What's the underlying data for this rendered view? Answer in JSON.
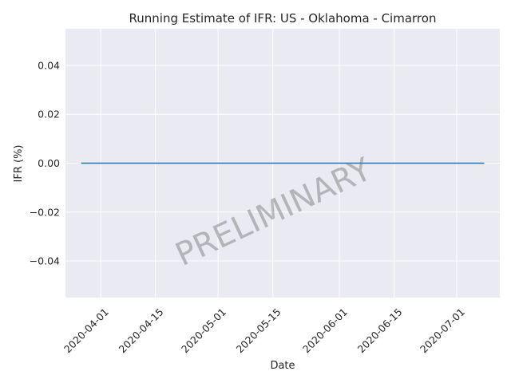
{
  "chart_data": {
    "type": "line",
    "title": "Running Estimate of IFR: US - Oklahoma - Cimarron",
    "xlabel": "Date",
    "ylabel": "IFR (%)",
    "xlim": [
      "2020-03-23",
      "2020-07-12"
    ],
    "ylim": [
      -0.055,
      0.055
    ],
    "x_ticks": [
      "2020-04-01",
      "2020-04-15",
      "2020-05-01",
      "2020-05-15",
      "2020-06-01",
      "2020-06-15",
      "2020-07-01"
    ],
    "y_ticks": [
      0.04,
      0.02,
      0.0,
      -0.02,
      -0.04
    ],
    "y_tick_labels": [
      "0.04",
      "0.02",
      "0.00",
      "−0.02",
      "−0.04"
    ],
    "series": [
      {
        "x": [
          "2020-03-27",
          "2020-07-08"
        ],
        "values": [
          0.0,
          0.0
        ]
      }
    ],
    "grid": true,
    "watermark": "PRELIMINARY",
    "colors": {
      "background": "#eaeaf2",
      "grid": "#ffffff",
      "line": "#1f77b4",
      "text": "#262626"
    }
  }
}
